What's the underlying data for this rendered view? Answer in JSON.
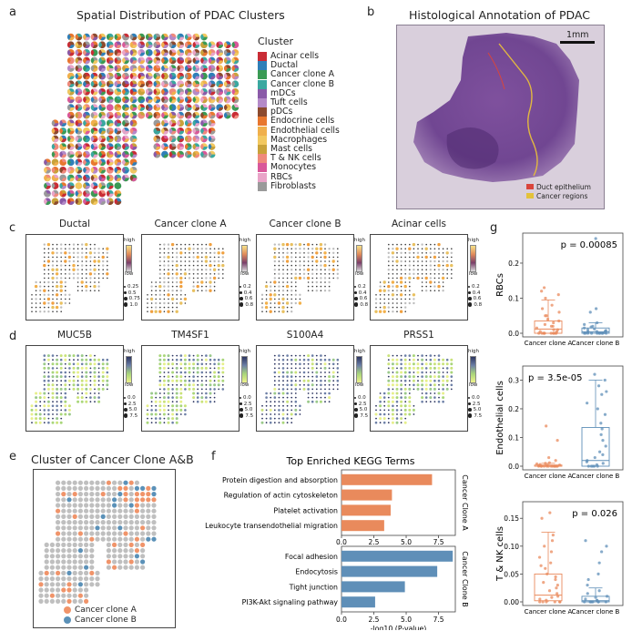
{
  "panels": {
    "a": {
      "letter": "a",
      "title": "Spatial Distribution of PDAC Clusters",
      "legend_title": "Cluster"
    },
    "b": {
      "letter": "b",
      "title": "Histological Annotation of PDAC",
      "scale": "1mm",
      "legend": [
        {
          "label": "Duct epithelium",
          "color": "#d9453c"
        },
        {
          "label": "Cancer regions",
          "color": "#e3c23a"
        }
      ]
    },
    "c": {
      "letter": "c",
      "titles": [
        "Ductal",
        "Cancer clone A",
        "Cancer clone B",
        "Acinar cells"
      ],
      "cbar_high": "high",
      "cbar_low": "low",
      "size_legends": [
        [
          "0.25",
          "0.5",
          "0.75",
          "1.0"
        ],
        [
          "0.2",
          "0.4",
          "0.6",
          "0.8"
        ],
        [
          "0.2",
          "0.4",
          "0.6",
          "0.8"
        ],
        [
          "0.2",
          "0.4",
          "0.6",
          "0.8"
        ]
      ]
    },
    "d": {
      "letter": "d",
      "titles": [
        "MUC5B",
        "TM4SF1",
        "S100A4",
        "PRSS1"
      ],
      "cbar_high": "high",
      "cbar_low": "low",
      "size_legends": [
        [
          "0.0",
          "2.5",
          "5.0",
          "7.5"
        ],
        [
          "0.0",
          "2.5",
          "5.0",
          "7.5"
        ],
        [
          "0.0",
          "2.5",
          "5.0",
          "7.5"
        ],
        [
          "0.0",
          "2.5",
          "5.0",
          "7.5"
        ]
      ]
    },
    "e": {
      "letter": "e",
      "title": "Cluster of Cancer Clone A&B",
      "legend": [
        {
          "label": "Cancer clone A",
          "color": "#f0946a"
        },
        {
          "label": "Cancer clone B",
          "color": "#5b91b8"
        }
      ]
    },
    "f": {
      "letter": "f"
    },
    "g": {
      "letter": "g"
    }
  },
  "clusters": [
    {
      "name": "Acinar cells",
      "color": "#c92c35"
    },
    {
      "name": "Ductal",
      "color": "#2f7fb8"
    },
    {
      "name": "Cancer clone A",
      "color": "#3a9a54"
    },
    {
      "name": "Cancer clone B",
      "color": "#3aa8a0"
    },
    {
      "name": "mDCs",
      "color": "#8a5aa8"
    },
    {
      "name": "Tuft cells",
      "color": "#b48ac8"
    },
    {
      "name": "pDCs",
      "color": "#8c4a2e"
    },
    {
      "name": "Endocrine cells",
      "color": "#e8772e"
    },
    {
      "name": "Endothelial cells",
      "color": "#f0b04c"
    },
    {
      "name": "Macrophages",
      "color": "#f2c860"
    },
    {
      "name": "Mast cells",
      "color": "#c9a23a"
    },
    {
      "name": "T & NK cells",
      "color": "#ef8a7c"
    },
    {
      "name": "Monocytes",
      "color": "#d9589a"
    },
    {
      "name": "RBCs",
      "color": "#e9a4c8"
    },
    {
      "name": "Fibroblasts",
      "color": "#9a9a9a"
    }
  ],
  "chart_data": [
    {
      "id": "kegg",
      "type": "bar",
      "title": "Top Enriched KEGG Terms",
      "xlabel": "-log10 (P-value)",
      "xlim": [
        0,
        8.8
      ],
      "xticks": [
        "0.0",
        "2.5",
        "5.0",
        "7.5"
      ],
      "series": [
        {
          "name": "Cancer Clone A",
          "color": "#e98a5c",
          "categories": [
            "Protein digestion and absorption",
            "Regulation of actin cytoskeleton",
            "Platelet activation",
            "Leukocyte transendothelial migration"
          ],
          "values": [
            7.0,
            3.9,
            3.8,
            3.3
          ]
        },
        {
          "name": "Cancer Clone B",
          "color": "#5f8fb8",
          "categories": [
            "Focal adhesion",
            "Endocytosis",
            "Tight junction",
            "PI3K-Akt signaling pathway"
          ],
          "values": [
            8.6,
            7.4,
            4.9,
            2.6
          ]
        }
      ]
    },
    {
      "id": "rbcs",
      "type": "box",
      "ylabel": "RBCs",
      "pvalue": "p = 0.00085",
      "categories": [
        "Cancer clone A",
        "Cancer clone B"
      ],
      "ylim": [
        0,
        0.27
      ],
      "yticks": [
        0.0,
        0.1,
        0.2
      ],
      "ytick_labels": [
        "0.0",
        "0.1",
        "0.2"
      ],
      "boxes": [
        {
          "q1": 0.0,
          "median": 0.012,
          "q3": 0.035,
          "whislo": 0.0,
          "whishi": 0.095,
          "points": [
            0.13,
            0.12,
            0.11,
            0.1,
            0.08,
            0.07,
            0.06,
            0.05,
            0.05,
            0.04,
            0.035,
            0.03,
            0.025,
            0.02,
            0.02,
            0.015,
            0.01,
            0.01,
            0.005,
            0.005,
            0.0,
            0.0,
            0.0,
            0.0,
            0.0,
            0.0,
            0.0,
            0.0,
            0.0,
            0.0
          ]
        },
        {
          "q1": 0.0,
          "median": 0.004,
          "q3": 0.015,
          "whislo": 0.0,
          "whishi": 0.03,
          "points": [
            0.27,
            0.07,
            0.06,
            0.03,
            0.025,
            0.02,
            0.018,
            0.015,
            0.012,
            0.01,
            0.008,
            0.006,
            0.005,
            0.004,
            0.003,
            0.002,
            0.0,
            0.0,
            0.0,
            0.0,
            0.0,
            0.0,
            0.0,
            0.0,
            0.0,
            0.0
          ]
        }
      ]
    },
    {
      "id": "endothelial",
      "type": "box",
      "ylabel": "Endothelial cells",
      "pvalue": "p = 3.5e-05",
      "categories": [
        "Cancer clone A",
        "Cancer clone B"
      ],
      "ylim": [
        0,
        0.33
      ],
      "yticks": [
        0.0,
        0.1,
        0.2,
        0.3
      ],
      "ytick_labels": [
        "0.0",
        "0.1",
        "0.2",
        "0.3"
      ],
      "boxes": [
        {
          "q1": 0.0,
          "median": 0.0,
          "q3": 0.004,
          "whislo": 0.0,
          "whishi": 0.01,
          "points": [
            0.14,
            0.09,
            0.03,
            0.02,
            0.012,
            0.01,
            0.008,
            0.006,
            0.004,
            0.003,
            0.002,
            0.0,
            0.0,
            0.0,
            0.0,
            0.0,
            0.0,
            0.0,
            0.0,
            0.0,
            0.0,
            0.0,
            0.0,
            0.0
          ]
        },
        {
          "q1": 0.0,
          "median": 0.02,
          "q3": 0.135,
          "whislo": 0.0,
          "whishi": 0.3,
          "points": [
            0.32,
            0.3,
            0.28,
            0.26,
            0.25,
            0.22,
            0.2,
            0.18,
            0.15,
            0.13,
            0.11,
            0.09,
            0.07,
            0.05,
            0.04,
            0.03,
            0.02,
            0.015,
            0.01,
            0.005,
            0.0,
            0.0,
            0.0,
            0.0,
            0.0
          ]
        }
      ]
    },
    {
      "id": "tnk",
      "type": "box",
      "ylabel": "T & NK cells",
      "pvalue": "p = 0.026",
      "categories": [
        "Cancer clone A",
        "Cancer clone B"
      ],
      "ylim": [
        0,
        0.17
      ],
      "yticks": [
        0.0,
        0.05,
        0.1,
        0.15
      ],
      "ytick_labels": [
        "0.00",
        "0.05",
        "0.10",
        "0.15"
      ],
      "boxes": [
        {
          "q1": 0.002,
          "median": 0.012,
          "q3": 0.05,
          "whislo": 0.0,
          "whishi": 0.125,
          "points": [
            0.16,
            0.15,
            0.12,
            0.11,
            0.1,
            0.09,
            0.08,
            0.07,
            0.065,
            0.06,
            0.05,
            0.045,
            0.04,
            0.035,
            0.03,
            0.025,
            0.02,
            0.015,
            0.01,
            0.008,
            0.005,
            0.003,
            0.0,
            0.0,
            0.0,
            0.0,
            0.0,
            0.0
          ]
        },
        {
          "q1": 0.0,
          "median": 0.002,
          "q3": 0.01,
          "whislo": 0.0,
          "whishi": 0.025,
          "points": [
            0.11,
            0.1,
            0.09,
            0.07,
            0.05,
            0.04,
            0.03,
            0.02,
            0.015,
            0.01,
            0.008,
            0.005,
            0.003,
            0.002,
            0.0,
            0.0,
            0.0,
            0.0,
            0.0,
            0.0,
            0.0,
            0.0
          ]
        }
      ]
    }
  ]
}
